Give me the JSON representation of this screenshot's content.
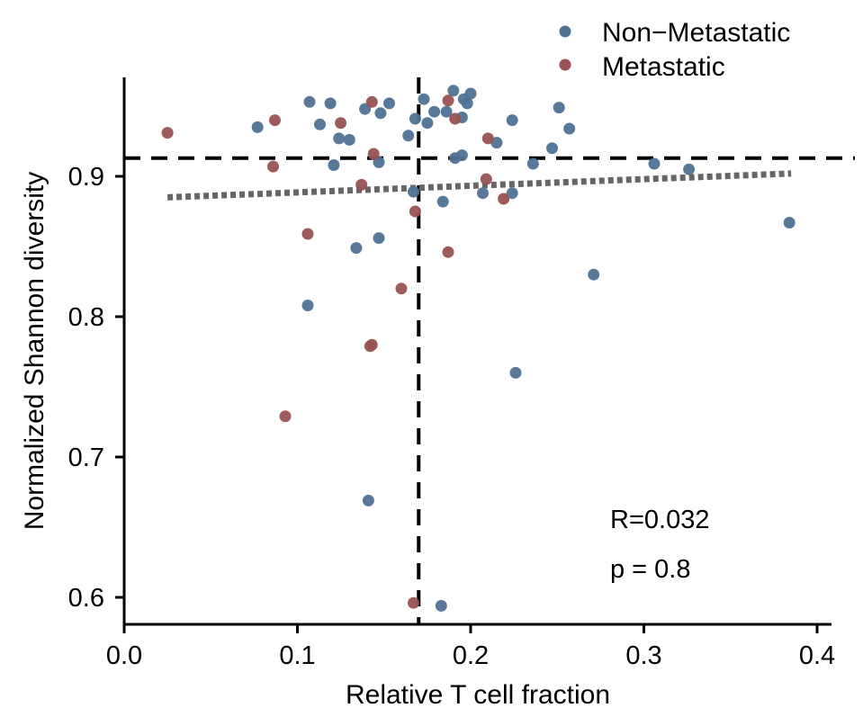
{
  "chart_data": {
    "type": "scatter",
    "xlabel": "Relative T cell fraction",
    "ylabel": "Normalized Shannon diversity",
    "xlim": [
      0.0,
      0.41
    ],
    "ylim": [
      0.581,
      0.969
    ],
    "x_ticks": [
      0.0,
      0.1,
      0.2,
      0.3,
      0.4
    ],
    "x_tick_labels": [
      "0.0",
      "0.1",
      "0.2",
      "0.3",
      "0.4"
    ],
    "y_ticks": [
      0.6,
      0.7,
      0.8,
      0.9
    ],
    "y_tick_labels": [
      "0.6",
      "0.7",
      "0.8",
      "0.9"
    ],
    "grid": false,
    "legend_position": "top-right",
    "series": [
      {
        "name": "Non−Metastatic",
        "color": "#4f7293",
        "points": [
          [
            0.077,
            0.935
          ],
          [
            0.107,
            0.953
          ],
          [
            0.113,
            0.937
          ],
          [
            0.119,
            0.952
          ],
          [
            0.121,
            0.908
          ],
          [
            0.124,
            0.927
          ],
          [
            0.13,
            0.926
          ],
          [
            0.139,
            0.948
          ],
          [
            0.148,
            0.945
          ],
          [
            0.153,
            0.952
          ],
          [
            0.164,
            0.929
          ],
          [
            0.168,
            0.941
          ],
          [
            0.173,
            0.955
          ],
          [
            0.175,
            0.938
          ],
          [
            0.179,
            0.946
          ],
          [
            0.186,
            0.946
          ],
          [
            0.19,
            0.961
          ],
          [
            0.195,
            0.942
          ],
          [
            0.196,
            0.955
          ],
          [
            0.198,
            0.952
          ],
          [
            0.2,
            0.959
          ],
          [
            0.191,
            0.913
          ],
          [
            0.195,
            0.915
          ],
          [
            0.215,
            0.924
          ],
          [
            0.224,
            0.94
          ],
          [
            0.251,
            0.949
          ],
          [
            0.257,
            0.934
          ],
          [
            0.247,
            0.92
          ],
          [
            0.236,
            0.909
          ],
          [
            0.306,
            0.909
          ],
          [
            0.326,
            0.905
          ],
          [
            0.147,
            0.91
          ],
          [
            0.167,
            0.889
          ],
          [
            0.184,
            0.882
          ],
          [
            0.207,
            0.888
          ],
          [
            0.224,
            0.888
          ],
          [
            0.134,
            0.849
          ],
          [
            0.147,
            0.856
          ],
          [
            0.106,
            0.808
          ],
          [
            0.271,
            0.83
          ],
          [
            0.384,
            0.867
          ],
          [
            0.226,
            0.76
          ],
          [
            0.141,
            0.669
          ],
          [
            0.183,
            0.594
          ]
        ]
      },
      {
        "name": "Metastatic",
        "color": "#985352",
        "points": [
          [
            0.025,
            0.931
          ],
          [
            0.087,
            0.94
          ],
          [
            0.086,
            0.907
          ],
          [
            0.125,
            0.938
          ],
          [
            0.143,
            0.953
          ],
          [
            0.144,
            0.916
          ],
          [
            0.137,
            0.894
          ],
          [
            0.187,
            0.954
          ],
          [
            0.191,
            0.941
          ],
          [
            0.21,
            0.927
          ],
          [
            0.209,
            0.898
          ],
          [
            0.219,
            0.884
          ],
          [
            0.168,
            0.875
          ],
          [
            0.106,
            0.859
          ],
          [
            0.187,
            0.846
          ],
          [
            0.16,
            0.82
          ],
          [
            0.143,
            0.78
          ],
          [
            0.142,
            0.779
          ],
          [
            0.093,
            0.729
          ],
          [
            0.167,
            0.596
          ]
        ]
      }
    ],
    "reference_lines": [
      {
        "orientation": "horizontal",
        "value": 0.913,
        "style": "dashed",
        "color": "#000000"
      },
      {
        "orientation": "vertical",
        "value": 0.17,
        "style": "dashed",
        "color": "#000000"
      }
    ],
    "trend_line": {
      "style": "dotted",
      "color": "#666666",
      "x": [
        0.025,
        0.385
      ],
      "y": [
        0.885,
        0.902
      ]
    },
    "annotations": [
      "R=0.032",
      "p = 0.8"
    ]
  }
}
